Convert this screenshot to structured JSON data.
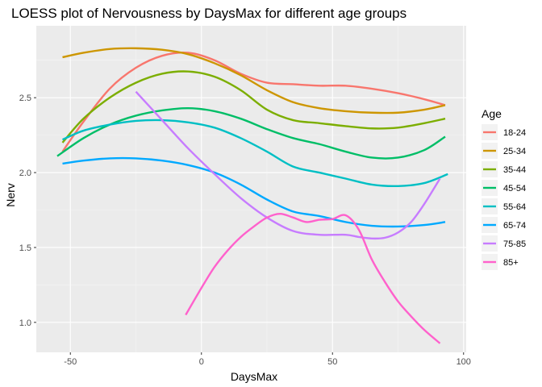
{
  "chart_data": {
    "type": "line",
    "title": "LOESS plot of Nervousness by DaysMax for different age groups",
    "xlabel": "DaysMax",
    "ylabel": "Nerv",
    "xlim": [
      -63,
      101
    ],
    "ylim": [
      0.8,
      2.98
    ],
    "xticks": [
      -50,
      0,
      50,
      100
    ],
    "yticks": [
      1.0,
      1.5,
      2.0,
      2.5
    ],
    "xtick_labels": [
      "-50",
      "0",
      "50",
      "100"
    ],
    "ytick_labels": [
      "1.0",
      "1.5",
      "2.0",
      "2.5"
    ],
    "grid": true,
    "legend": {
      "title": "Age",
      "position": "right"
    },
    "series": [
      {
        "name": "18-24",
        "color": "#F8766D",
        "x": [
          -53,
          -45,
          -35,
          -25,
          -15,
          -5,
          5,
          15,
          25,
          35,
          45,
          55,
          65,
          75,
          85,
          93
        ],
        "y": [
          2.14,
          2.34,
          2.56,
          2.7,
          2.78,
          2.8,
          2.75,
          2.66,
          2.6,
          2.59,
          2.58,
          2.58,
          2.56,
          2.53,
          2.49,
          2.45
        ]
      },
      {
        "name": "25-34",
        "color": "#CD9600",
        "x": [
          -53,
          -45,
          -35,
          -25,
          -15,
          -5,
          5,
          15,
          25,
          35,
          45,
          55,
          65,
          75,
          85,
          93
        ],
        "y": [
          2.77,
          2.8,
          2.825,
          2.83,
          2.82,
          2.79,
          2.73,
          2.65,
          2.55,
          2.47,
          2.43,
          2.41,
          2.4,
          2.4,
          2.42,
          2.45
        ]
      },
      {
        "name": "35-44",
        "color": "#7CAE00",
        "x": [
          -53,
          -45,
          -35,
          -25,
          -15,
          -5,
          5,
          15,
          25,
          35,
          45,
          55,
          65,
          75,
          85,
          93
        ],
        "y": [
          2.2,
          2.36,
          2.5,
          2.6,
          2.66,
          2.675,
          2.64,
          2.55,
          2.42,
          2.35,
          2.33,
          2.31,
          2.295,
          2.3,
          2.33,
          2.36
        ]
      },
      {
        "name": "45-54",
        "color": "#00BE67",
        "x": [
          -55,
          -45,
          -35,
          -25,
          -15,
          -5,
          5,
          15,
          25,
          35,
          45,
          55,
          65,
          75,
          85,
          93
        ],
        "y": [
          2.11,
          2.23,
          2.32,
          2.38,
          2.415,
          2.43,
          2.41,
          2.36,
          2.29,
          2.23,
          2.19,
          2.14,
          2.1,
          2.1,
          2.15,
          2.24
        ]
      },
      {
        "name": "55-64",
        "color": "#00BFC4",
        "x": [
          -53,
          -45,
          -35,
          -25,
          -15,
          -5,
          5,
          15,
          25,
          35,
          45,
          55,
          65,
          75,
          85,
          94
        ],
        "y": [
          2.22,
          2.28,
          2.32,
          2.345,
          2.35,
          2.335,
          2.3,
          2.23,
          2.14,
          2.04,
          2.0,
          1.96,
          1.92,
          1.91,
          1.93,
          1.99
        ]
      },
      {
        "name": "65-74",
        "color": "#00A9FF",
        "x": [
          -53,
          -45,
          -35,
          -25,
          -15,
          -5,
          5,
          15,
          25,
          35,
          45,
          55,
          65,
          75,
          85,
          93
        ],
        "y": [
          2.06,
          2.08,
          2.095,
          2.095,
          2.08,
          2.05,
          2.0,
          1.92,
          1.82,
          1.74,
          1.71,
          1.67,
          1.645,
          1.64,
          1.65,
          1.67
        ]
      },
      {
        "name": "75-85",
        "color": "#C77CFF",
        "x": [
          -25,
          -15,
          -5,
          5,
          15,
          25,
          35,
          45,
          55,
          60,
          65,
          70,
          75,
          80,
          85,
          91
        ],
        "y": [
          2.54,
          2.35,
          2.16,
          1.99,
          1.83,
          1.7,
          1.61,
          1.585,
          1.585,
          1.57,
          1.56,
          1.565,
          1.6,
          1.67,
          1.79,
          1.96
        ]
      },
      {
        "name": "85+",
        "color": "#FF61CC",
        "x": [
          -6,
          0,
          5,
          10,
          15,
          20,
          25,
          30,
          35,
          40,
          45,
          50,
          55,
          60,
          65,
          70,
          75,
          80,
          85,
          91
        ],
        "y": [
          1.05,
          1.23,
          1.37,
          1.48,
          1.57,
          1.64,
          1.7,
          1.725,
          1.7,
          1.67,
          1.685,
          1.69,
          1.715,
          1.62,
          1.42,
          1.27,
          1.14,
          1.04,
          0.95,
          0.86
        ]
      }
    ]
  }
}
